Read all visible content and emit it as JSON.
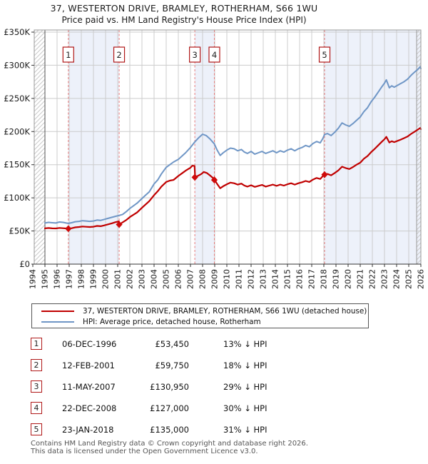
{
  "title": "37, WESTERTON DRIVE, BRAMLEY, ROTHERHAM, S66 1WU",
  "subtitle": "Price paid vs. HM Land Registry's House Price Index (HPI)",
  "legend": {
    "property": "37, WESTERTON DRIVE, BRAMLEY, ROTHERHAM, S66 1WU (detached house)",
    "hpi": "HPI: Average price, detached house, Rotherham"
  },
  "footer": {
    "line1": "Contains HM Land Registry data © Crown copyright and database right 2026.",
    "line2": "This data is licensed under the Open Government Licence v3.0."
  },
  "chart_data": {
    "type": "line",
    "unit": "GBP_thousands",
    "x_axis": {
      "tick_labels": [
        "1994",
        "1995",
        "1996",
        "1997",
        "1998",
        "1999",
        "2000",
        "2001",
        "2002",
        "2003",
        "2004",
        "2005",
        "2006",
        "2007",
        "2008",
        "2009",
        "2010",
        "2011",
        "2012",
        "2013",
        "2014",
        "2015",
        "2016",
        "2017",
        "2018",
        "2019",
        "2020",
        "2021",
        "2022",
        "2023",
        "2024",
        "2025",
        "2026"
      ],
      "range": [
        1994,
        2026
      ]
    },
    "y_axis": {
      "ticks": [
        {
          "label": "£0",
          "value": 0
        },
        {
          "label": "£50K",
          "value": 50
        },
        {
          "label": "£100K",
          "value": 100
        },
        {
          "label": "£150K",
          "value": 150
        },
        {
          "label": "£200K",
          "value": 200
        },
        {
          "label": "£250K",
          "value": 250
        },
        {
          "label": "£300K",
          "value": 300
        },
        {
          "label": "£350K",
          "value": 350
        }
      ],
      "range_k": [
        0,
        350
      ]
    },
    "series": [
      {
        "name": "price-paid",
        "legend": "37, WESTERTON DRIVE, BRAMLEY, ROTHERHAM, S66 1WU (detached house)",
        "color": "#c00000",
        "width": 2.2,
        "points": [
          [
            1995,
            54
          ],
          [
            1995.3,
            54.5
          ],
          [
            1995.6,
            54
          ],
          [
            1995.9,
            53.8
          ],
          [
            1996.2,
            54.6
          ],
          [
            1996.5,
            54.2
          ],
          [
            1996.75,
            53.8
          ],
          [
            1996.93,
            53.45
          ],
          [
            1997.2,
            54.2
          ],
          [
            1997.5,
            55.5
          ],
          [
            1997.8,
            56
          ],
          [
            1998.1,
            56.8
          ],
          [
            1998.4,
            56.3
          ],
          [
            1998.7,
            56
          ],
          [
            1999,
            56.4
          ],
          [
            1999.3,
            57.6
          ],
          [
            1999.6,
            57.2
          ],
          [
            1999.9,
            58.5
          ],
          [
            2000.2,
            60
          ],
          [
            2000.5,
            61.5
          ],
          [
            2000.8,
            63.2
          ],
          [
            2001.1,
            64.5
          ],
          [
            2001.13,
            59.75
          ],
          [
            2001.4,
            63
          ],
          [
            2001.7,
            66.5
          ],
          [
            2002,
            71
          ],
          [
            2002.3,
            74.5
          ],
          [
            2002.6,
            78
          ],
          [
            2003,
            85
          ],
          [
            2003.3,
            90
          ],
          [
            2003.6,
            95
          ],
          [
            2004,
            104
          ],
          [
            2004.3,
            110
          ],
          [
            2004.6,
            117
          ],
          [
            2005,
            124
          ],
          [
            2005.3,
            126
          ],
          [
            2005.6,
            127
          ],
          [
            2006,
            133
          ],
          [
            2006.3,
            137
          ],
          [
            2006.6,
            141
          ],
          [
            2007,
            145.5
          ],
          [
            2007.15,
            148.5
          ],
          [
            2007.34,
            148
          ],
          [
            2007.38,
            130.95
          ],
          [
            2007.6,
            133
          ],
          [
            2007.9,
            136
          ],
          [
            2008.1,
            139
          ],
          [
            2008.35,
            137.5
          ],
          [
            2008.6,
            134
          ],
          [
            2008.95,
            128.5
          ],
          [
            2008.99,
            127
          ],
          [
            2009.2,
            121
          ],
          [
            2009.45,
            114.5
          ],
          [
            2009.7,
            117.5
          ],
          [
            2010,
            120.5
          ],
          [
            2010.3,
            123
          ],
          [
            2010.6,
            122
          ],
          [
            2010.9,
            120
          ],
          [
            2011.2,
            121.5
          ],
          [
            2011.45,
            118.5
          ],
          [
            2011.7,
            117
          ],
          [
            2012,
            119
          ],
          [
            2012.3,
            116.5
          ],
          [
            2012.6,
            118
          ],
          [
            2012.9,
            119.5
          ],
          [
            2013.2,
            117
          ],
          [
            2013.5,
            118.5
          ],
          [
            2013.8,
            120
          ],
          [
            2014.1,
            118
          ],
          [
            2014.4,
            120
          ],
          [
            2014.7,
            118.5
          ],
          [
            2015,
            120.5
          ],
          [
            2015.3,
            122
          ],
          [
            2015.6,
            120
          ],
          [
            2015.9,
            122
          ],
          [
            2016.2,
            123.5
          ],
          [
            2016.5,
            125.5
          ],
          [
            2016.8,
            124
          ],
          [
            2017.1,
            127.5
          ],
          [
            2017.4,
            130
          ],
          [
            2017.7,
            128.5
          ],
          [
            2017.9,
            132.5
          ],
          [
            2018.04,
            136.9
          ],
          [
            2018.08,
            135
          ],
          [
            2018.3,
            136
          ],
          [
            2018.6,
            134
          ],
          [
            2018.9,
            137.5
          ],
          [
            2019.2,
            141.5
          ],
          [
            2019.5,
            147
          ],
          [
            2019.8,
            145
          ],
          [
            2020.1,
            143.5
          ],
          [
            2020.4,
            146.5
          ],
          [
            2020.7,
            150
          ],
          [
            2021,
            153
          ],
          [
            2021.3,
            159
          ],
          [
            2021.6,
            163
          ],
          [
            2021.9,
            169
          ],
          [
            2022.2,
            174
          ],
          [
            2022.5,
            179.5
          ],
          [
            2022.8,
            185
          ],
          [
            2023,
            188.5
          ],
          [
            2023.15,
            192
          ],
          [
            2023.4,
            183.5
          ],
          [
            2023.6,
            185.5
          ],
          [
            2023.8,
            184
          ],
          [
            2024,
            185.5
          ],
          [
            2024.3,
            187.5
          ],
          [
            2024.6,
            190
          ],
          [
            2024.9,
            192.5
          ],
          [
            2025.2,
            196.5
          ],
          [
            2025.5,
            200
          ],
          [
            2025.75,
            203
          ],
          [
            2025.95,
            205.5
          ],
          [
            2026,
            203.5
          ]
        ]
      },
      {
        "name": "hpi",
        "legend": "HPI: Average price, detached house, Rotherham",
        "color": "#6f96c6",
        "width": 2,
        "points": [
          [
            1995,
            62
          ],
          [
            1995.3,
            63
          ],
          [
            1995.6,
            62.5
          ],
          [
            1995.9,
            62
          ],
          [
            1996.2,
            63.5
          ],
          [
            1996.5,
            63
          ],
          [
            1996.75,
            62
          ],
          [
            1996.93,
            61.5
          ],
          [
            1997.2,
            62.5
          ],
          [
            1997.5,
            64
          ],
          [
            1997.8,
            64.5
          ],
          [
            1998.1,
            65.5
          ],
          [
            1998.4,
            65
          ],
          [
            1998.7,
            64.5
          ],
          [
            1999,
            65
          ],
          [
            1999.3,
            66.5
          ],
          [
            1999.6,
            66
          ],
          [
            1999.9,
            67.5
          ],
          [
            2000.2,
            69
          ],
          [
            2000.5,
            70.5
          ],
          [
            2000.8,
            72
          ],
          [
            2001.12,
            73.5
          ],
          [
            2001.4,
            75
          ],
          [
            2001.7,
            79
          ],
          [
            2002,
            84
          ],
          [
            2002.3,
            88
          ],
          [
            2002.6,
            92
          ],
          [
            2003,
            99
          ],
          [
            2003.3,
            104
          ],
          [
            2003.6,
            109
          ],
          [
            2004,
            121
          ],
          [
            2004.3,
            127
          ],
          [
            2004.6,
            136
          ],
          [
            2005,
            146
          ],
          [
            2005.3,
            150
          ],
          [
            2005.6,
            154
          ],
          [
            2006,
            158
          ],
          [
            2006.3,
            163
          ],
          [
            2006.6,
            168
          ],
          [
            2007,
            176
          ],
          [
            2007.36,
            184.4
          ],
          [
            2007.7,
            191
          ],
          [
            2008,
            196
          ],
          [
            2008.3,
            194
          ],
          [
            2008.6,
            189
          ],
          [
            2008.97,
            181.4
          ],
          [
            2009.2,
            172
          ],
          [
            2009.45,
            164
          ],
          [
            2009.7,
            168
          ],
          [
            2010,
            172
          ],
          [
            2010.3,
            175
          ],
          [
            2010.6,
            174
          ],
          [
            2010.9,
            171
          ],
          [
            2011.2,
            173
          ],
          [
            2011.45,
            169
          ],
          [
            2011.7,
            167
          ],
          [
            2012,
            170
          ],
          [
            2012.3,
            166
          ],
          [
            2012.6,
            168
          ],
          [
            2012.9,
            170
          ],
          [
            2013.2,
            167
          ],
          [
            2013.5,
            169
          ],
          [
            2013.8,
            171
          ],
          [
            2014.1,
            168
          ],
          [
            2014.4,
            171
          ],
          [
            2014.7,
            169
          ],
          [
            2015,
            172
          ],
          [
            2015.3,
            174
          ],
          [
            2015.6,
            171
          ],
          [
            2015.9,
            174
          ],
          [
            2016.2,
            176
          ],
          [
            2016.5,
            179
          ],
          [
            2016.8,
            177
          ],
          [
            2017.1,
            182
          ],
          [
            2017.4,
            185
          ],
          [
            2017.7,
            183
          ],
          [
            2017.9,
            189
          ],
          [
            2018.06,
            195.6
          ],
          [
            2018.3,
            197
          ],
          [
            2018.6,
            194
          ],
          [
            2018.9,
            199
          ],
          [
            2019.2,
            205
          ],
          [
            2019.5,
            213
          ],
          [
            2019.8,
            210
          ],
          [
            2020.1,
            208
          ],
          [
            2020.4,
            212
          ],
          [
            2020.7,
            217
          ],
          [
            2021,
            222
          ],
          [
            2021.3,
            230
          ],
          [
            2021.6,
            236
          ],
          [
            2021.9,
            245
          ],
          [
            2022.2,
            252
          ],
          [
            2022.5,
            260
          ],
          [
            2022.8,
            268
          ],
          [
            2023,
            273
          ],
          [
            2023.15,
            278
          ],
          [
            2023.4,
            266
          ],
          [
            2023.6,
            269
          ],
          [
            2023.8,
            267
          ],
          [
            2024,
            269
          ],
          [
            2024.3,
            272
          ],
          [
            2024.6,
            275
          ],
          [
            2024.9,
            279
          ],
          [
            2025.2,
            285
          ],
          [
            2025.5,
            290
          ],
          [
            2025.75,
            294
          ],
          [
            2025.95,
            298
          ],
          [
            2026,
            295
          ]
        ]
      }
    ],
    "sales": [
      {
        "num": "1",
        "date": "06-DEC-1996",
        "price": "£53,450",
        "year": 1996.93,
        "value_k": 53.45,
        "vs_hpi": "13% ↓ HPI"
      },
      {
        "num": "2",
        "date": "12-FEB-2001",
        "price": "£59,750",
        "year": 2001.12,
        "value_k": 59.75,
        "vs_hpi": "18% ↓ HPI"
      },
      {
        "num": "3",
        "date": "11-MAY-2007",
        "price": "£130,950",
        "year": 2007.36,
        "value_k": 130.95,
        "vs_hpi": "29% ↓ HPI"
      },
      {
        "num": "4",
        "date": "22-DEC-2008",
        "price": "£127,000",
        "year": 2008.97,
        "value_k": 127.0,
        "vs_hpi": "30% ↓ HPI"
      },
      {
        "num": "5",
        "date": "23-JAN-2018",
        "price": "£135,000",
        "year": 2018.06,
        "value_k": 135.0,
        "vs_hpi": "31% ↓ HPI"
      }
    ],
    "shaded_bands_years": [
      [
        1996.93,
        2001.12
      ],
      [
        2007.36,
        2008.97
      ],
      [
        2018.06,
        2026
      ]
    ],
    "hatched_regions_years": [
      [
        1994,
        1995
      ],
      [
        2025.65,
        2026
      ]
    ],
    "colors": {
      "band": "#edf1fa",
      "grid": "#cccccc",
      "dashed_marker": "#e87c7c",
      "hatch": "#c9c9c9",
      "axis": "#333333",
      "border": "#999999",
      "marker_box_border": "#b01818"
    },
    "legend_position": "below"
  }
}
